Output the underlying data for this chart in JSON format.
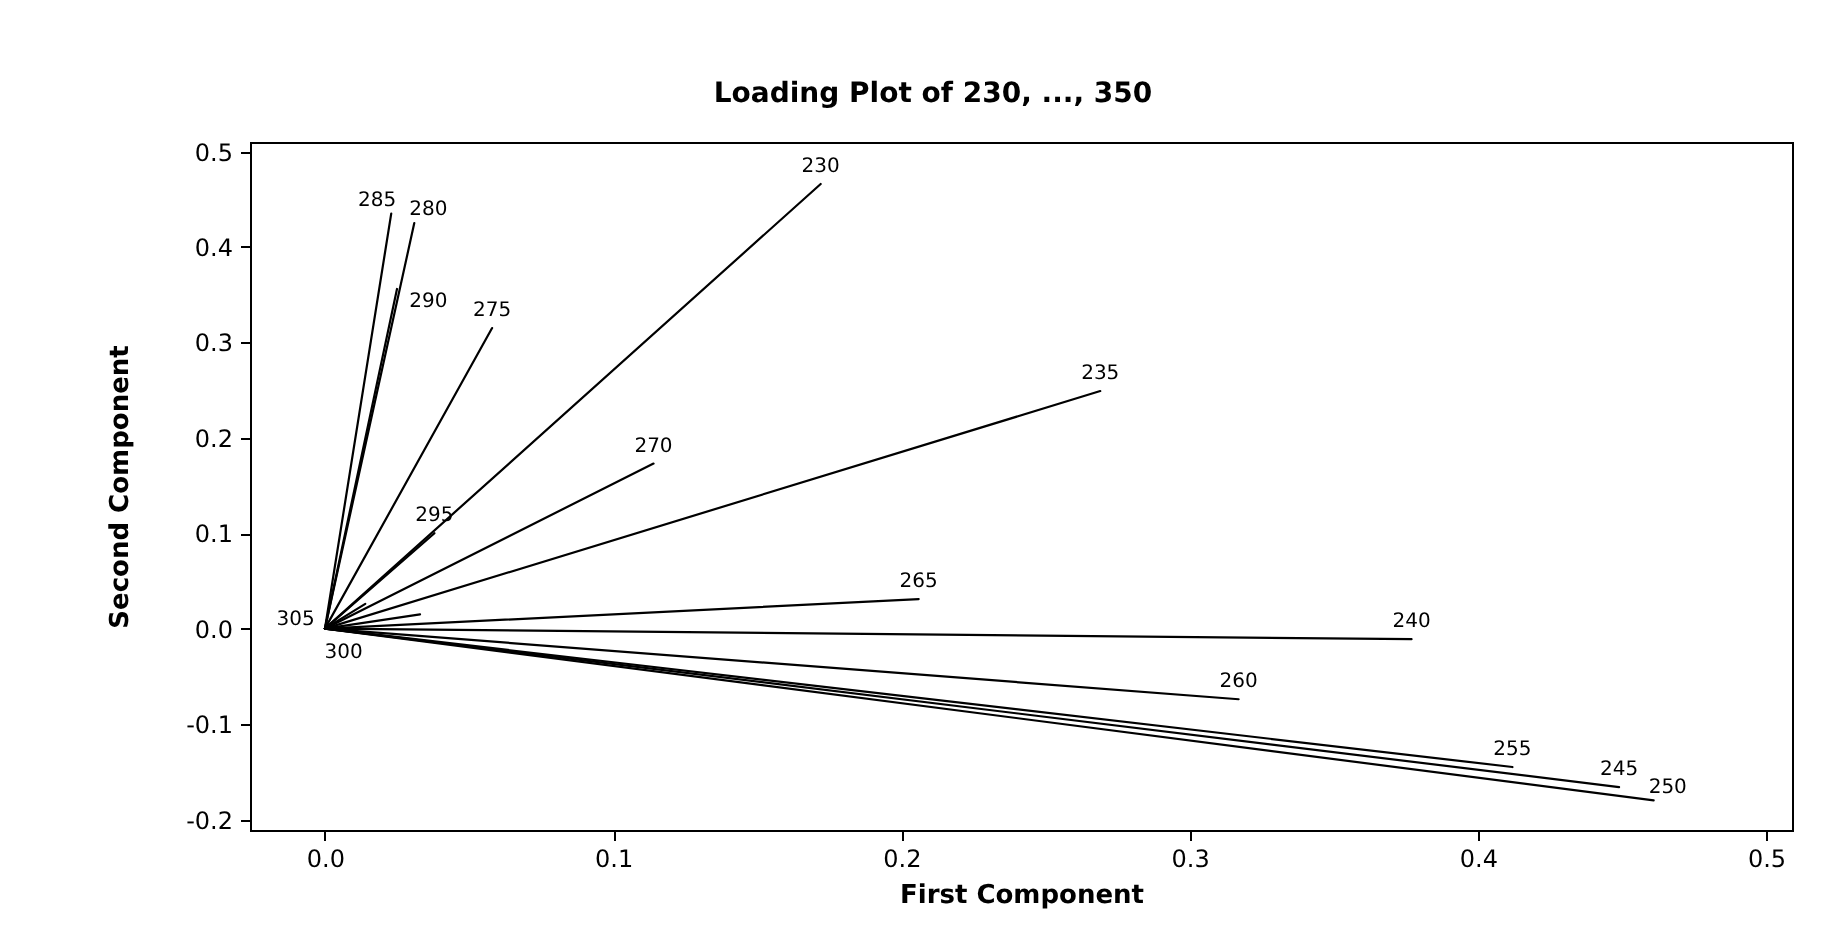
{
  "chart_data": {
    "type": "line",
    "title": "Loading Plot of 230, ..., 350",
    "xlabel": "First Component",
    "ylabel": "Second Component",
    "xlim": [
      -0.026,
      0.509
    ],
    "ylim": [
      -0.211,
      0.51
    ],
    "xticks": [
      {
        "value": 0,
        "label": "0.0"
      },
      0.1,
      0.2,
      0.3,
      0.4,
      0.5
    ],
    "yticks": [
      -0.2,
      -0.1,
      {
        "value": 0,
        "label": "0.0"
      },
      0.1,
      0.2,
      0.3,
      0.4,
      0.5
    ],
    "series": [
      {
        "name": "230",
        "color": "#000000",
        "x": [
          0,
          0.172
        ],
        "values": [
          0,
          0.466
        ]
      },
      {
        "name": "235",
        "color": "#000000",
        "x": [
          0,
          0.269
        ],
        "values": [
          0,
          0.249
        ]
      },
      {
        "name": "240",
        "color": "#000000",
        "x": [
          0,
          0.377
        ],
        "values": [
          0,
          -0.011
        ]
      },
      {
        "name": "245",
        "color": "#000000",
        "x": [
          0,
          0.449
        ],
        "values": [
          0,
          -0.166
        ]
      },
      {
        "name": "250",
        "color": "#000000",
        "x": [
          0,
          0.461
        ],
        "values": [
          0,
          -0.18
        ]
      },
      {
        "name": "255",
        "color": "#000000",
        "x": [
          0,
          0.412
        ],
        "values": [
          0,
          -0.145
        ]
      },
      {
        "name": "260",
        "color": "#000000",
        "x": [
          0,
          0.317
        ],
        "values": [
          0,
          -0.074
        ]
      },
      {
        "name": "265",
        "color": "#000000",
        "x": [
          0,
          0.206
        ],
        "values": [
          0,
          0.031
        ]
      },
      {
        "name": "270",
        "color": "#000000",
        "x": [
          0,
          0.114
        ],
        "values": [
          0,
          0.173
        ]
      },
      {
        "name": "275",
        "color": "#000000",
        "x": [
          0,
          0.058
        ],
        "values": [
          0,
          0.315
        ]
      },
      {
        "name": "280",
        "color": "#000000",
        "x": [
          0,
          0.031
        ],
        "values": [
          0,
          0.425
        ]
      },
      {
        "name": "285",
        "color": "#000000",
        "x": [
          0,
          0.023
        ],
        "values": [
          0,
          0.435
        ]
      },
      {
        "name": "290",
        "color": "#000000",
        "x": [
          0,
          0.025
        ],
        "values": [
          0,
          0.356
        ]
      },
      {
        "name": "295",
        "color": "#000000",
        "x": [
          0,
          0.038
        ],
        "values": [
          0,
          0.1
        ]
      },
      {
        "name": "300",
        "color": "#000000",
        "x": [
          0,
          0.033
        ],
        "values": [
          0,
          0.015
        ]
      },
      {
        "name": "305",
        "color": "#000000",
        "x": [
          0,
          0.014
        ],
        "values": [
          0,
          0.026
        ]
      }
    ]
  }
}
